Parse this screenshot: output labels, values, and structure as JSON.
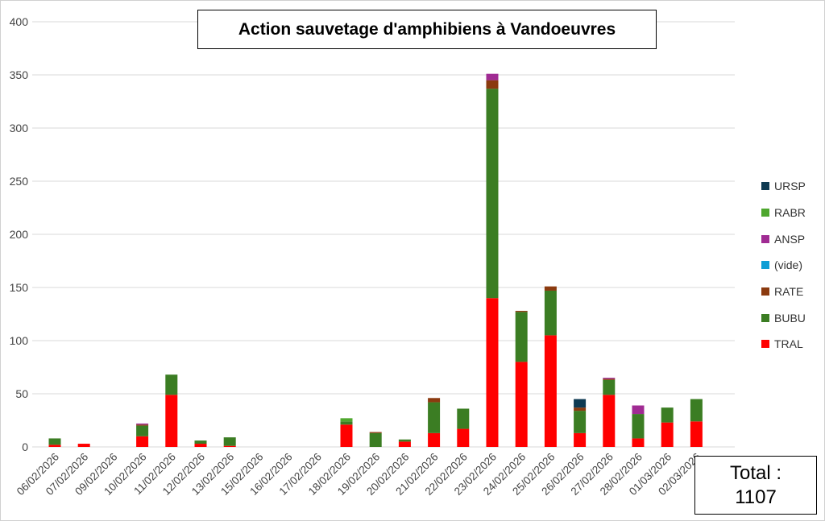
{
  "chart_data": {
    "type": "bar",
    "stacked": true,
    "title": "Action sauvetage d'amphibiens à Vandoeuvres",
    "xlabel": "",
    "ylabel": "",
    "ylim": [
      0,
      400
    ],
    "yticks": [
      0,
      50,
      100,
      150,
      200,
      250,
      300,
      350,
      400
    ],
    "grid": true,
    "legend_position": "right",
    "categories": [
      "06/02/2026",
      "07/02/2026",
      "09/02/2026",
      "10/02/2026",
      "11/02/2026",
      "12/02/2026",
      "13/02/2026",
      "15/02/2026",
      "16/02/2026",
      "17/02/2026",
      "18/02/2026",
      "19/02/2026",
      "20/02/2026",
      "21/02/2026",
      "22/02/2026",
      "23/02/2026",
      "24/02/2026",
      "25/02/2026",
      "26/02/2026",
      "27/02/2026",
      "28/02/2026",
      "01/03/2026",
      "02/03/2026"
    ],
    "series": [
      {
        "name": "TRAL",
        "color": "#ff0000",
        "values": [
          2,
          3,
          0,
          10,
          49,
          3,
          1,
          0,
          0,
          0,
          21,
          0,
          5,
          13,
          17,
          140,
          80,
          105,
          13,
          49,
          8,
          23,
          24
        ]
      },
      {
        "name": "BUBU",
        "color": "#3b7d23",
        "values": [
          6,
          0,
          0,
          10,
          19,
          3,
          8,
          0,
          0,
          0,
          3,
          13,
          2,
          29,
          19,
          197,
          47,
          42,
          21,
          14,
          23,
          14,
          21
        ]
      },
      {
        "name": "RATE",
        "color": "#8b3a0f",
        "values": [
          0,
          0,
          0,
          1,
          0,
          0,
          0,
          0,
          0,
          0,
          0,
          1,
          0,
          4,
          0,
          8,
          1,
          4,
          3,
          1,
          0,
          0,
          0
        ]
      },
      {
        "name": "(vide)",
        "color": "#0f9ed5",
        "values": [
          0,
          0,
          0,
          0,
          0,
          0,
          0,
          0,
          0,
          0,
          0,
          0,
          0,
          0,
          0,
          0,
          0,
          0,
          0,
          0,
          0,
          0,
          0
        ]
      },
      {
        "name": "ANSP",
        "color": "#a02b93",
        "values": [
          0,
          0,
          0,
          1,
          0,
          0,
          0,
          0,
          0,
          0,
          0,
          0,
          0,
          0,
          0,
          6,
          0,
          0,
          0,
          1,
          8,
          0,
          0
        ]
      },
      {
        "name": "RABR",
        "color": "#4ea72e",
        "values": [
          0,
          0,
          0,
          0,
          0,
          0,
          0,
          0,
          0,
          0,
          3,
          0,
          0,
          0,
          0,
          0,
          0,
          0,
          0,
          0,
          0,
          0,
          0
        ]
      },
      {
        "name": "URSP",
        "color": "#0e3a52",
        "values": [
          0,
          0,
          0,
          0,
          0,
          0,
          0,
          0,
          0,
          0,
          0,
          0,
          0,
          0,
          0,
          0,
          0,
          0,
          8,
          0,
          0,
          0,
          0
        ]
      }
    ],
    "legend_order": [
      "URSP",
      "RABR",
      "ANSP",
      "(vide)",
      "RATE",
      "BUBU",
      "TRAL"
    ],
    "annotations": {
      "total_label": "Total :",
      "total_value": "1107"
    }
  }
}
